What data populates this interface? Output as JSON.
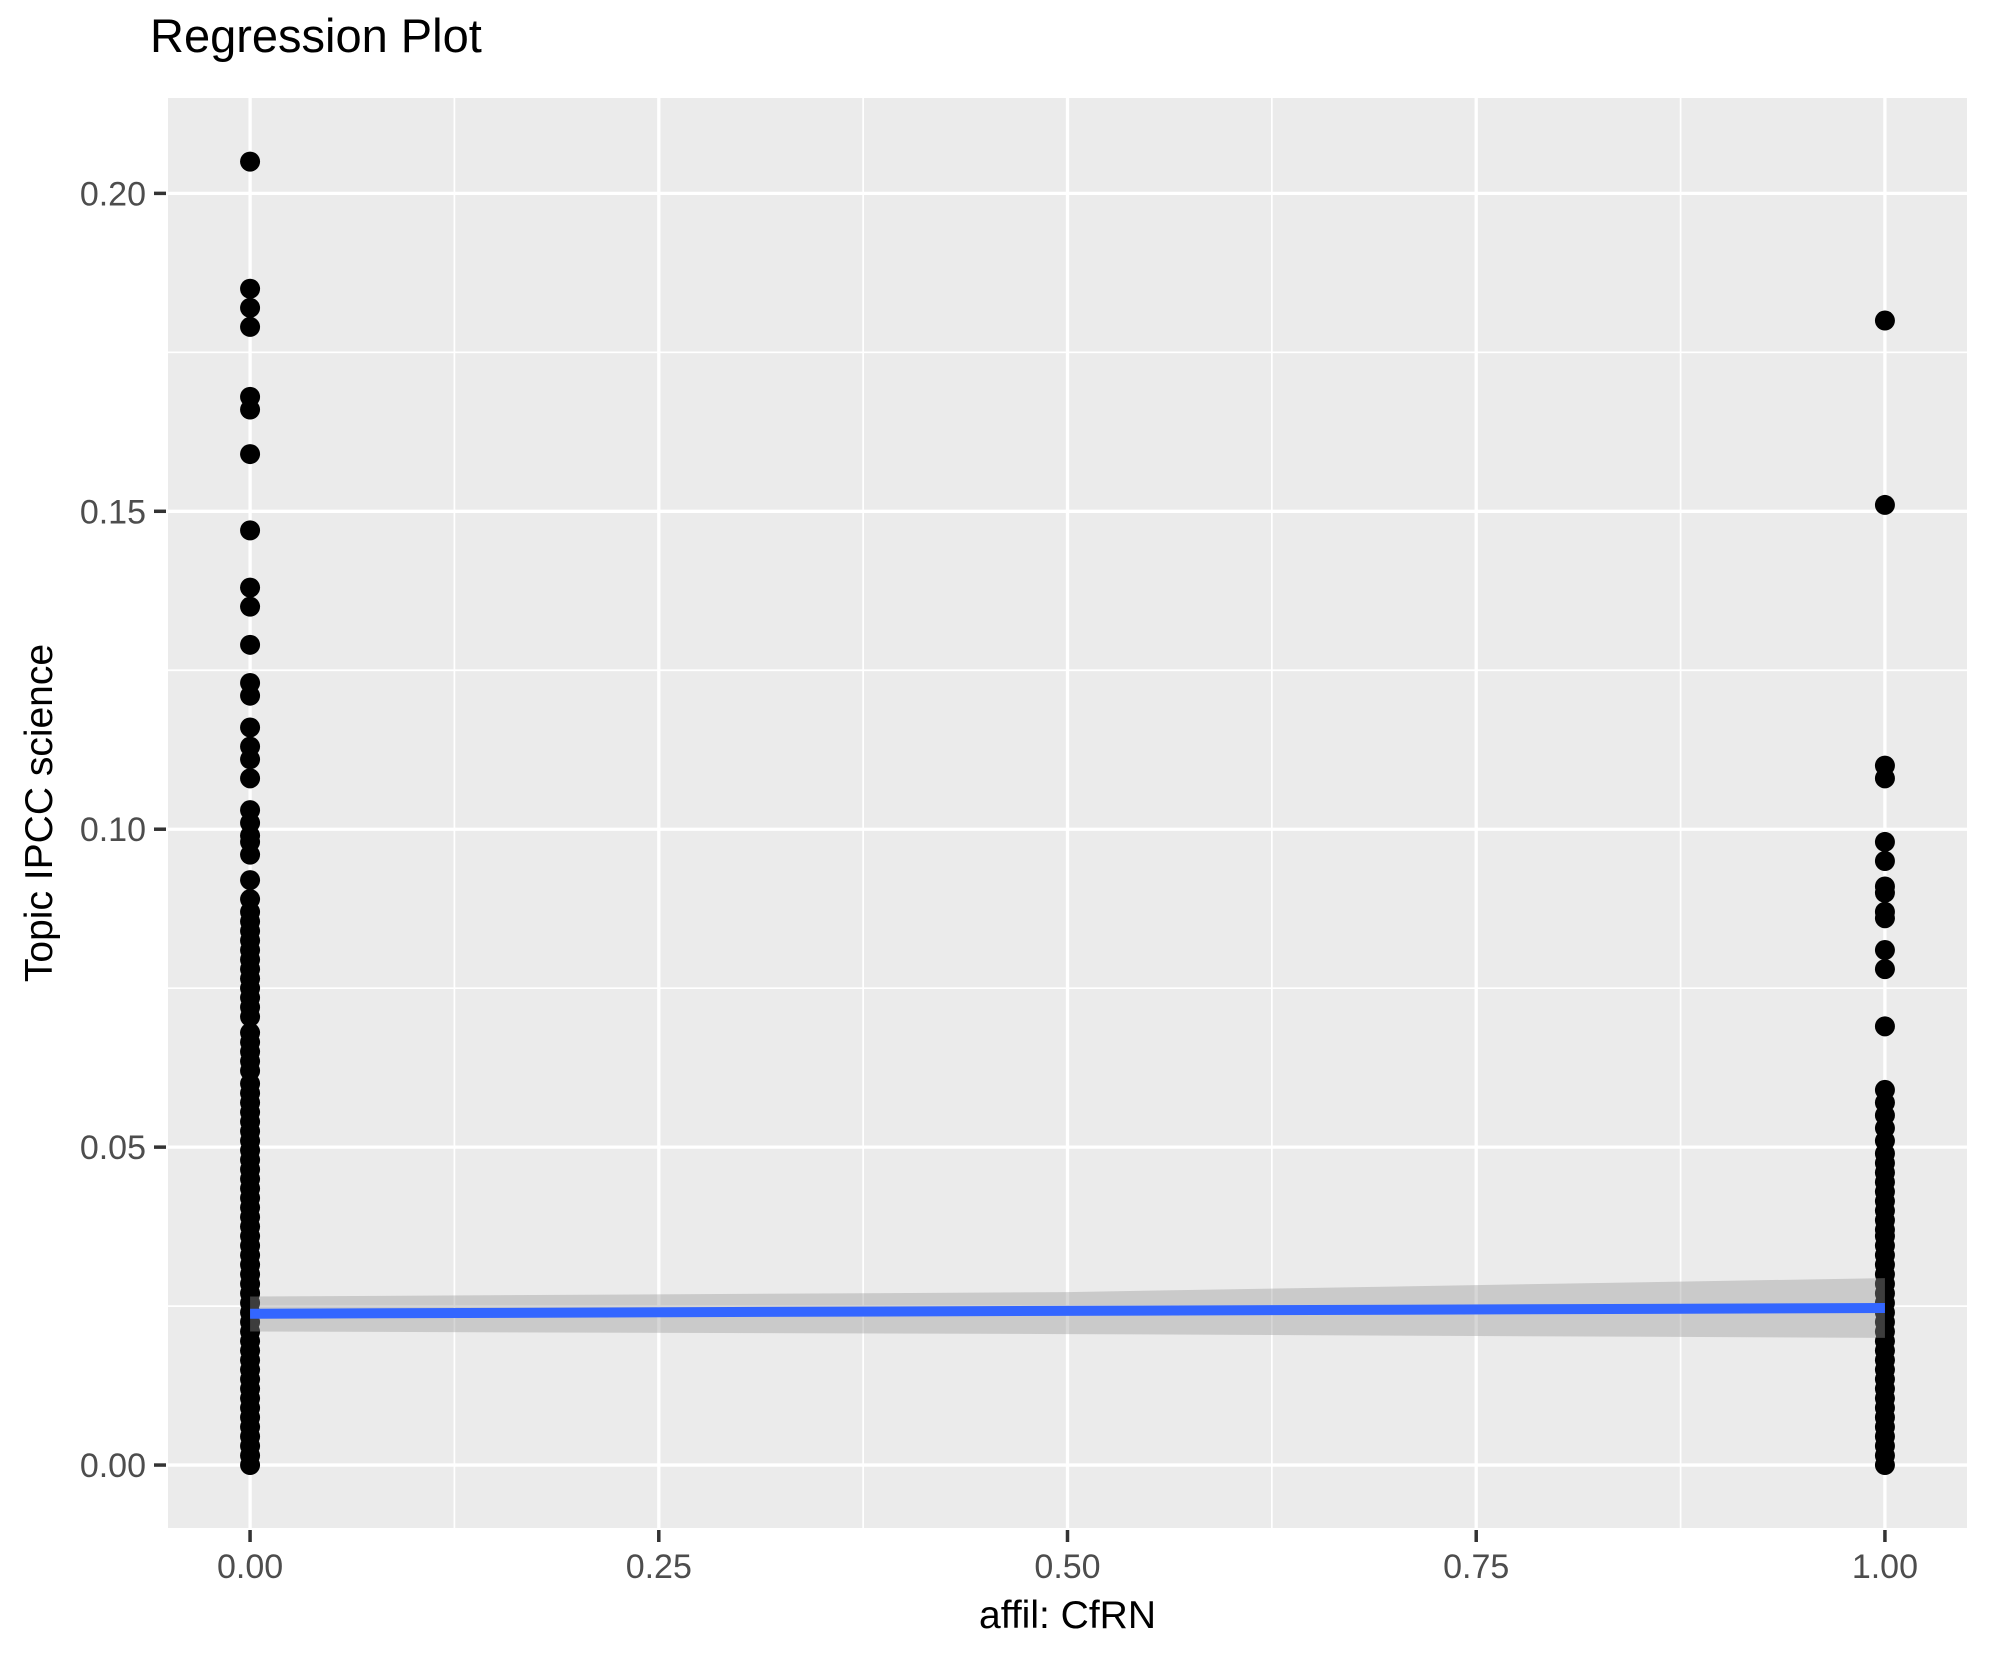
{
  "title": "Regression Plot",
  "axes": {
    "x": {
      "label": "affil: CfRN",
      "tick_labels": [
        "0.00",
        "0.25",
        "0.50",
        "0.75",
        "1.00"
      ]
    },
    "y": {
      "label": "Topic IPCC science",
      "tick_labels": [
        "0.00",
        "0.05",
        "0.10",
        "0.15",
        "0.20"
      ]
    }
  },
  "colors": {
    "page_background": "#FFFFFF",
    "panel_background": "#EBEBEB",
    "gridline": "#FFFFFF",
    "point": "#000000",
    "regression_line": "#3366FF",
    "ribbon_fill": "#999999",
    "ribbon_alpha": 0.4,
    "tick_mark": "#333333",
    "tick_label": "#4D4D4D",
    "title_text": "#000000"
  },
  "chart_data": {
    "type": "scatter",
    "title": "Regression Plot",
    "xlabel": "affil: CfRN",
    "ylabel": "Topic IPCC science",
    "xlim": [
      -0.0502,
      1.0502
    ],
    "ylim": [
      -0.0099,
      0.215
    ],
    "x_ticks": [
      0,
      0.25,
      0.5,
      0.75,
      1.0
    ],
    "y_ticks": [
      0,
      0.05,
      0.1,
      0.15,
      0.2
    ],
    "grid": "white major and minor gridlines on grey panel, minors at midpoints",
    "legend": "none",
    "series": [
      {
        "name": "observations_x0",
        "type": "points",
        "x": 0,
        "y": [
          0.205,
          0.185,
          0.182,
          0.179,
          0.168,
          0.166,
          0.159,
          0.147,
          0.138,
          0.135,
          0.129,
          0.123,
          0.121,
          0.116,
          0.113,
          0.111,
          0.108,
          0.103,
          0.101,
          0.099,
          0.098,
          0.096,
          0.092,
          0.089,
          0.087,
          0.0855,
          0.084,
          0.0825,
          0.081,
          0.0795,
          0.078,
          0.0765,
          0.075,
          0.0735,
          0.072,
          0.0705,
          0.068,
          0.0665,
          0.065,
          0.0635,
          0.062,
          0.06,
          0.0585,
          0.057,
          0.0555,
          0.054,
          0.0525,
          0.051,
          0.0495,
          0.048,
          0.0465,
          0.045,
          0.0435,
          0.042,
          0.0405,
          0.039,
          0.0375,
          0.036,
          0.0345,
          0.033,
          0.0315,
          0.03,
          0.0285,
          0.027,
          0.0255,
          0.024,
          0.0225,
          0.021,
          0.0195,
          0.018,
          0.0165,
          0.015,
          0.0135,
          0.012,
          0.0105,
          0.009,
          0.0075,
          0.006,
          0.0045,
          0.003,
          0.0015,
          0.0
        ]
      },
      {
        "name": "observations_x1",
        "type": "points",
        "x": 1,
        "y": [
          0.18,
          0.151,
          0.11,
          0.108,
          0.098,
          0.095,
          0.091,
          0.09,
          0.087,
          0.086,
          0.081,
          0.078,
          0.069,
          0.059,
          0.057,
          0.055,
          0.053,
          0.051,
          0.049,
          0.0475,
          0.046,
          0.0445,
          0.043,
          0.0415,
          0.04,
          0.0385,
          0.037,
          0.036,
          0.0345,
          0.033,
          0.0315,
          0.03,
          0.0285,
          0.027,
          0.0255,
          0.024,
          0.0225,
          0.021,
          0.0195,
          0.018,
          0.0165,
          0.015,
          0.0135,
          0.012,
          0.0105,
          0.009,
          0.0075,
          0.006,
          0.0045,
          0.003,
          0.0015,
          0.0
        ]
      },
      {
        "name": "regression_line",
        "type": "line",
        "x": [
          0,
          1
        ],
        "y": [
          0.0238,
          0.0247
        ]
      },
      {
        "name": "confidence_ribbon",
        "type": "ribbon",
        "x": [
          0,
          0.5,
          1
        ],
        "y_lower": [
          0.021,
          0.0206,
          0.02
        ],
        "y_upper": [
          0.0265,
          0.0272,
          0.0294
        ]
      }
    ]
  }
}
